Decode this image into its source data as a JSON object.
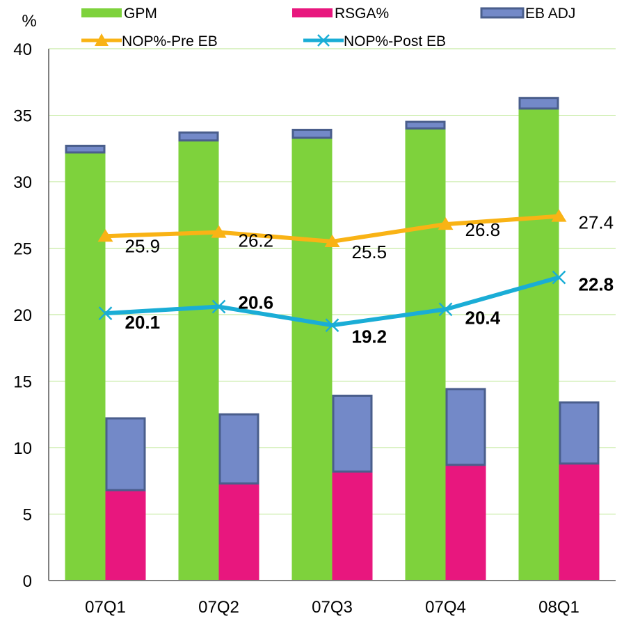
{
  "chart_data": {
    "type": "bar",
    "ylabel": "%",
    "ylim": [
      0,
      40
    ],
    "yticks": [
      0,
      5,
      10,
      15,
      20,
      25,
      30,
      35,
      40
    ],
    "categories": [
      "07Q1",
      "07Q2",
      "07Q3",
      "07Q4",
      "08Q1"
    ],
    "grid": true,
    "legend_position": "top",
    "bar_groups": [
      {
        "name": "GPM",
        "color": "#7ED23C",
        "stack": [
          {
            "series": "GPM",
            "values": [
              32.2,
              33.1,
              33.3,
              34.0,
              35.5
            ]
          },
          {
            "series": "EB ADJ",
            "values": [
              0.5,
              0.6,
              0.6,
              0.5,
              0.8
            ]
          }
        ]
      },
      {
        "name": "RSGA%",
        "color": "#E8177E",
        "stack": [
          {
            "series": "RSGA%",
            "values": [
              6.8,
              7.3,
              8.2,
              8.7,
              8.8
            ]
          },
          {
            "series": "EB ADJ",
            "values": [
              5.4,
              5.2,
              5.7,
              5.7,
              4.6
            ]
          }
        ]
      }
    ],
    "series": [
      {
        "name": "GPM",
        "kind": "bar",
        "color": "#7ED23C"
      },
      {
        "name": "RSGA%",
        "kind": "bar",
        "color": "#E8177E"
      },
      {
        "name": "EB ADJ",
        "kind": "bar",
        "color": "#7389C8"
      },
      {
        "name": "NOP%-Pre EB",
        "kind": "line",
        "marker": "triangle",
        "color": "#F9B315",
        "values": [
          25.9,
          26.2,
          25.5,
          26.8,
          27.4
        ],
        "labels": [
          "25.9",
          "26.2",
          "25.5",
          "26.8",
          "27.4"
        ]
      },
      {
        "name": "NOP%-Post EB",
        "kind": "line",
        "marker": "x",
        "color": "#1AADD6",
        "values": [
          20.1,
          20.6,
          19.2,
          20.4,
          22.8
        ],
        "labels": [
          "20.1",
          "20.6",
          "19.2",
          "20.4",
          "22.8"
        ]
      }
    ]
  }
}
